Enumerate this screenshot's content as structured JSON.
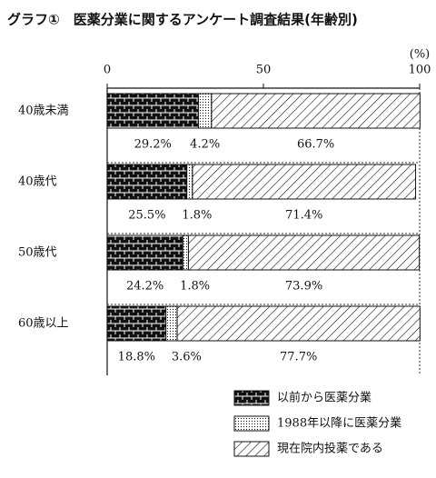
{
  "chart_data": {
    "type": "stacked-bar-horizontal",
    "title": "グラフ①　医薬分業に関するアンケート調査結果(年齢別)",
    "unit": "(%)",
    "categories": [
      "40歳未満",
      "40歳代",
      "50歳代",
      "60歳以上"
    ],
    "series": [
      {
        "name": "以前から医薬分業",
        "color": "#111111",
        "pattern": "brick",
        "values": [
          29.2,
          25.5,
          24.2,
          18.8
        ],
        "value_labels": [
          "29.2%",
          "25.5%",
          "24.2%",
          "18.8%"
        ]
      },
      {
        "name": "1988年以降に医薬分業",
        "color": "#111111",
        "pattern": "dots",
        "values": [
          4.2,
          1.8,
          1.8,
          3.6
        ],
        "value_labels": [
          "4.2%",
          "1.8%",
          "1.8%",
          "3.6%"
        ]
      },
      {
        "name": "現在院内投薬である",
        "color": "#111111",
        "pattern": "hatch",
        "values": [
          66.7,
          71.4,
          73.9,
          77.7
        ],
        "value_labels": [
          "66.7%",
          "71.4%",
          "73.9%",
          "77.7%"
        ]
      }
    ],
    "xlim": [
      0,
      100
    ],
    "xticks": [
      0,
      50,
      100
    ]
  }
}
